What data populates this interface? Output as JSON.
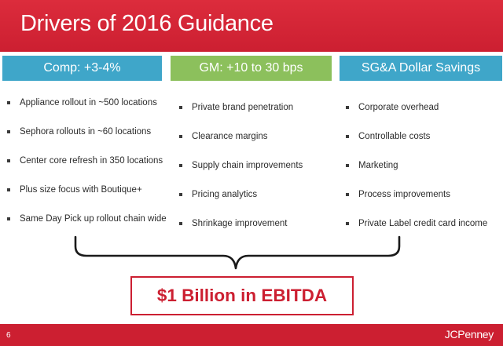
{
  "slide": {
    "title": "Drivers of 2016 Guidance",
    "page_number": "6",
    "logo_text": "JCPenney"
  },
  "columns": [
    {
      "header": "Comp: +3-4%",
      "items": [
        "Appliance rollout in ~500 locations",
        "Sephora rollouts in ~60 locations",
        "Center core refresh in 350 locations",
        "Plus size focus with Boutique+",
        "Same Day Pick up rollout chain wide"
      ]
    },
    {
      "header": "GM: +10 to 30 bps",
      "items": [
        "Private brand penetration",
        "Clearance margins",
        "Supply chain improvements",
        "Pricing analytics",
        "Shrinkage improvement"
      ]
    },
    {
      "header": "SG&A Dollar Savings",
      "items": [
        "Corporate overhead",
        "Controllable costs",
        "Marketing",
        "Process improvements",
        "Private Label credit card income"
      ]
    }
  ],
  "summary": {
    "text": "$1 Billion in EBITDA"
  },
  "colors": {
    "brand_red": "#cc1f31",
    "header_blue": "#3fa6c9",
    "header_green": "#8cc05c"
  }
}
